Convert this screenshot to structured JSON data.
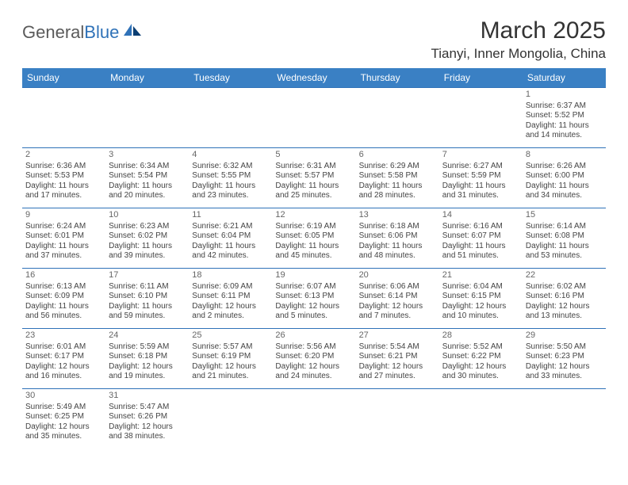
{
  "logo": {
    "text1": "General",
    "text2": "Blue"
  },
  "title": "March 2025",
  "location": "Tianyi, Inner Mongolia, China",
  "colors": {
    "header_bg": "#3a80c4",
    "header_text": "#ffffff",
    "border": "#2f72b8",
    "text": "#444444",
    "logo_gray": "#5a5a5a",
    "logo_blue": "#2f72b8"
  },
  "weekdays": [
    "Sunday",
    "Monday",
    "Tuesday",
    "Wednesday",
    "Thursday",
    "Friday",
    "Saturday"
  ],
  "weeks": [
    [
      null,
      null,
      null,
      null,
      null,
      null,
      {
        "n": "1",
        "sr": "Sunrise: 6:37 AM",
        "ss": "Sunset: 5:52 PM",
        "dl": "Daylight: 11 hours and 14 minutes."
      }
    ],
    [
      {
        "n": "2",
        "sr": "Sunrise: 6:36 AM",
        "ss": "Sunset: 5:53 PM",
        "dl": "Daylight: 11 hours and 17 minutes."
      },
      {
        "n": "3",
        "sr": "Sunrise: 6:34 AM",
        "ss": "Sunset: 5:54 PM",
        "dl": "Daylight: 11 hours and 20 minutes."
      },
      {
        "n": "4",
        "sr": "Sunrise: 6:32 AM",
        "ss": "Sunset: 5:55 PM",
        "dl": "Daylight: 11 hours and 23 minutes."
      },
      {
        "n": "5",
        "sr": "Sunrise: 6:31 AM",
        "ss": "Sunset: 5:57 PM",
        "dl": "Daylight: 11 hours and 25 minutes."
      },
      {
        "n": "6",
        "sr": "Sunrise: 6:29 AM",
        "ss": "Sunset: 5:58 PM",
        "dl": "Daylight: 11 hours and 28 minutes."
      },
      {
        "n": "7",
        "sr": "Sunrise: 6:27 AM",
        "ss": "Sunset: 5:59 PM",
        "dl": "Daylight: 11 hours and 31 minutes."
      },
      {
        "n": "8",
        "sr": "Sunrise: 6:26 AM",
        "ss": "Sunset: 6:00 PM",
        "dl": "Daylight: 11 hours and 34 minutes."
      }
    ],
    [
      {
        "n": "9",
        "sr": "Sunrise: 6:24 AM",
        "ss": "Sunset: 6:01 PM",
        "dl": "Daylight: 11 hours and 37 minutes."
      },
      {
        "n": "10",
        "sr": "Sunrise: 6:23 AM",
        "ss": "Sunset: 6:02 PM",
        "dl": "Daylight: 11 hours and 39 minutes."
      },
      {
        "n": "11",
        "sr": "Sunrise: 6:21 AM",
        "ss": "Sunset: 6:04 PM",
        "dl": "Daylight: 11 hours and 42 minutes."
      },
      {
        "n": "12",
        "sr": "Sunrise: 6:19 AM",
        "ss": "Sunset: 6:05 PM",
        "dl": "Daylight: 11 hours and 45 minutes."
      },
      {
        "n": "13",
        "sr": "Sunrise: 6:18 AM",
        "ss": "Sunset: 6:06 PM",
        "dl": "Daylight: 11 hours and 48 minutes."
      },
      {
        "n": "14",
        "sr": "Sunrise: 6:16 AM",
        "ss": "Sunset: 6:07 PM",
        "dl": "Daylight: 11 hours and 51 minutes."
      },
      {
        "n": "15",
        "sr": "Sunrise: 6:14 AM",
        "ss": "Sunset: 6:08 PM",
        "dl": "Daylight: 11 hours and 53 minutes."
      }
    ],
    [
      {
        "n": "16",
        "sr": "Sunrise: 6:13 AM",
        "ss": "Sunset: 6:09 PM",
        "dl": "Daylight: 11 hours and 56 minutes."
      },
      {
        "n": "17",
        "sr": "Sunrise: 6:11 AM",
        "ss": "Sunset: 6:10 PM",
        "dl": "Daylight: 11 hours and 59 minutes."
      },
      {
        "n": "18",
        "sr": "Sunrise: 6:09 AM",
        "ss": "Sunset: 6:11 PM",
        "dl": "Daylight: 12 hours and 2 minutes."
      },
      {
        "n": "19",
        "sr": "Sunrise: 6:07 AM",
        "ss": "Sunset: 6:13 PM",
        "dl": "Daylight: 12 hours and 5 minutes."
      },
      {
        "n": "20",
        "sr": "Sunrise: 6:06 AM",
        "ss": "Sunset: 6:14 PM",
        "dl": "Daylight: 12 hours and 7 minutes."
      },
      {
        "n": "21",
        "sr": "Sunrise: 6:04 AM",
        "ss": "Sunset: 6:15 PM",
        "dl": "Daylight: 12 hours and 10 minutes."
      },
      {
        "n": "22",
        "sr": "Sunrise: 6:02 AM",
        "ss": "Sunset: 6:16 PM",
        "dl": "Daylight: 12 hours and 13 minutes."
      }
    ],
    [
      {
        "n": "23",
        "sr": "Sunrise: 6:01 AM",
        "ss": "Sunset: 6:17 PM",
        "dl": "Daylight: 12 hours and 16 minutes."
      },
      {
        "n": "24",
        "sr": "Sunrise: 5:59 AM",
        "ss": "Sunset: 6:18 PM",
        "dl": "Daylight: 12 hours and 19 minutes."
      },
      {
        "n": "25",
        "sr": "Sunrise: 5:57 AM",
        "ss": "Sunset: 6:19 PM",
        "dl": "Daylight: 12 hours and 21 minutes."
      },
      {
        "n": "26",
        "sr": "Sunrise: 5:56 AM",
        "ss": "Sunset: 6:20 PM",
        "dl": "Daylight: 12 hours and 24 minutes."
      },
      {
        "n": "27",
        "sr": "Sunrise: 5:54 AM",
        "ss": "Sunset: 6:21 PM",
        "dl": "Daylight: 12 hours and 27 minutes."
      },
      {
        "n": "28",
        "sr": "Sunrise: 5:52 AM",
        "ss": "Sunset: 6:22 PM",
        "dl": "Daylight: 12 hours and 30 minutes."
      },
      {
        "n": "29",
        "sr": "Sunrise: 5:50 AM",
        "ss": "Sunset: 6:23 PM",
        "dl": "Daylight: 12 hours and 33 minutes."
      }
    ],
    [
      {
        "n": "30",
        "sr": "Sunrise: 5:49 AM",
        "ss": "Sunset: 6:25 PM",
        "dl": "Daylight: 12 hours and 35 minutes."
      },
      {
        "n": "31",
        "sr": "Sunrise: 5:47 AM",
        "ss": "Sunset: 6:26 PM",
        "dl": "Daylight: 12 hours and 38 minutes."
      },
      null,
      null,
      null,
      null,
      null
    ]
  ]
}
